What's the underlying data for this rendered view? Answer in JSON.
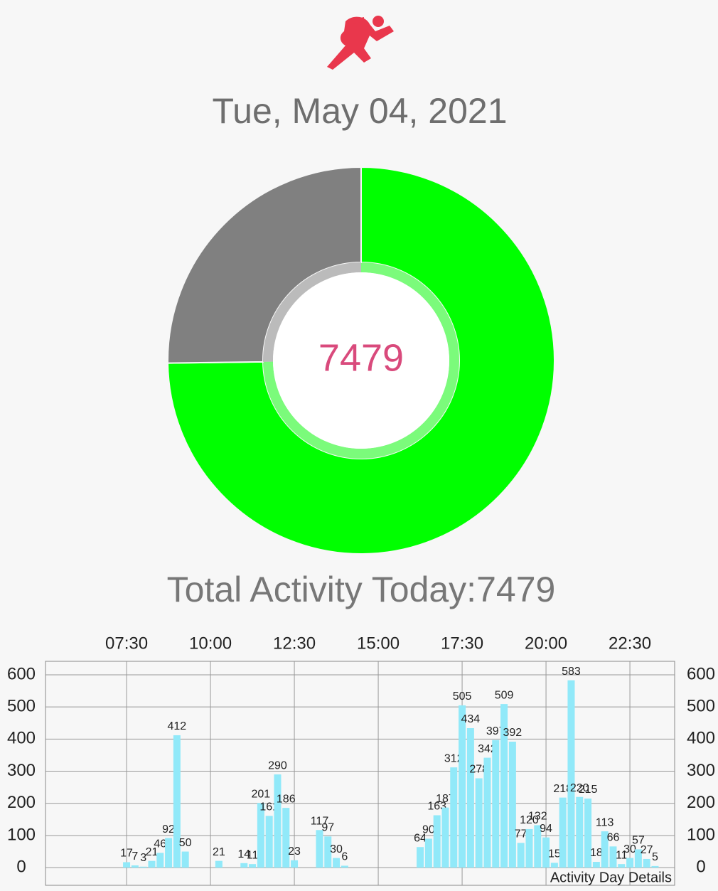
{
  "header": {
    "date": "Tue, May 04, 2021",
    "total": "Total Activity Today:7479"
  },
  "chart_data": [
    {
      "type": "pie",
      "center_label": "7479",
      "values": [
        7479,
        2521
      ],
      "colors": [
        "#00ff00",
        "#808080"
      ]
    },
    {
      "type": "bar",
      "description": "Activity Day Details",
      "color": "#91e9f9",
      "grid": true,
      "x": [
        "07:30",
        "07:45",
        "08:00",
        "08:15",
        "08:30",
        "08:45",
        "09:00",
        "09:15",
        "10:15",
        "11:00",
        "11:15",
        "11:30",
        "11:45",
        "12:00",
        "12:15",
        "12:30",
        "13:15",
        "13:30",
        "13:45",
        "14:00",
        "16:15",
        "16:30",
        "16:45",
        "17:00",
        "17:15",
        "17:30",
        "17:45",
        "18:00",
        "18:15",
        "18:30",
        "18:45",
        "19:00",
        "19:15",
        "19:30",
        "19:45",
        "20:00",
        "20:15",
        "20:30",
        "20:45",
        "21:00",
        "21:15",
        "21:30",
        "21:45",
        "22:00",
        "22:15",
        "22:30",
        "22:45",
        "23:00",
        "23:15"
      ],
      "values": [
        17,
        7,
        3,
        21,
        46,
        92,
        412,
        50,
        21,
        14,
        11,
        201,
        161,
        290,
        186,
        23,
        117,
        97,
        30,
        6,
        64,
        90,
        163,
        187,
        312,
        505,
        434,
        278,
        342,
        397,
        509,
        392,
        77,
        120,
        132,
        94,
        15,
        218,
        583,
        220,
        215,
        18,
        113,
        66,
        11,
        30,
        57,
        27,
        5
      ],
      "xlim": [
        "05:05",
        "23:50"
      ],
      "xticks": [
        "07:30",
        "10:00",
        "12:30",
        "15:00",
        "17:30",
        "20:00",
        "22:30"
      ],
      "ylim": [
        -55,
        642
      ],
      "yticks": [
        0,
        100,
        200,
        300,
        400,
        500,
        600
      ],
      "y2lim": [
        -55,
        642
      ],
      "y2ticks": [
        0,
        100,
        200,
        300,
        400,
        500,
        600
      ]
    }
  ]
}
